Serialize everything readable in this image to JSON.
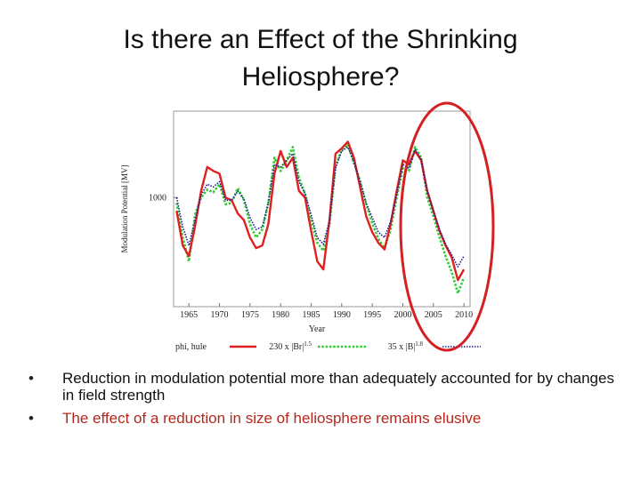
{
  "slide": {
    "title_line1": "Is there an Effect of the Shrinking",
    "title_line2": "Heliosphere?",
    "bullets": [
      "Reduction in modulation potential more than adequately accounted for by changes in field strength",
      "The effect of a reduction in size of heliosphere remains elusive"
    ]
  },
  "colors": {
    "phi": "#e02020",
    "fit1": "#33cc33",
    "fit2": "#1a1a99",
    "highlight": "#d42020",
    "bullet_accent": "#b5271c"
  },
  "chart_data": {
    "type": "line",
    "title": "",
    "xlabel": "Year",
    "ylabel": "Modulation Potential [MV]",
    "xlim": [
      1962.5,
      2011
    ],
    "ylim": [
      180,
      1650
    ],
    "x_ticks": [
      "1965",
      "1970",
      "1975",
      "1980",
      "1985",
      "1990",
      "1995",
      "2000",
      "2005",
      "2010"
    ],
    "y_ticks": [
      "1000"
    ],
    "x": [
      1963,
      1964,
      1965,
      1966,
      1967,
      1968,
      1969,
      1970,
      1971,
      1972,
      1973,
      1974,
      1975,
      1976,
      1977,
      1978,
      1979,
      1980,
      1981,
      1982,
      1983,
      1984,
      1985,
      1986,
      1987,
      1988,
      1989,
      1990,
      1991,
      1992,
      1993,
      1994,
      1995,
      1996,
      1997,
      1998,
      1999,
      2000,
      2001,
      2002,
      2003,
      2004,
      2005,
      2006,
      2007,
      2008,
      2009,
      2010
    ],
    "series": [
      {
        "name": "phi, hule",
        "legend_label": "phi, hule",
        "color": "#e02020",
        "style": "solid",
        "values": [
          900,
          640,
          560,
          780,
          1050,
          1230,
          1200,
          1180,
          1000,
          980,
          880,
          830,
          700,
          620,
          640,
          800,
          1180,
          1350,
          1230,
          1300,
          1050,
          1000,
          750,
          520,
          460,
          830,
          1330,
          1370,
          1420,
          1300,
          1080,
          860,
          740,
          660,
          610,
          800,
          1050,
          1280,
          1250,
          1350,
          1280,
          1050,
          900,
          750,
          640,
          550,
          380,
          460
        ]
      },
      {
        "name": "230 x |Br|^1.5",
        "legend_label": "230 x |Br|",
        "legend_exponent": "1.5",
        "color": "#33cc33",
        "style": "dotted",
        "values": [
          960,
          700,
          520,
          870,
          1000,
          1060,
          1040,
          1100,
          950,
          960,
          1070,
          980,
          800,
          700,
          760,
          960,
          1300,
          1200,
          1280,
          1380,
          1150,
          1030,
          830,
          660,
          600,
          800,
          1240,
          1360,
          1400,
          1260,
          1130,
          950,
          810,
          690,
          620,
          760,
          1000,
          1220,
          1200,
          1380,
          1300,
          1000,
          860,
          700,
          560,
          440,
          280,
          400
        ]
      },
      {
        "name": "35 x |B|^1.8",
        "legend_label": "35 x |B|",
        "legend_exponent": "1.8",
        "color": "#1a1a99",
        "style": "dotted",
        "values": [
          1000,
          780,
          640,
          830,
          1020,
          1100,
          1080,
          1120,
          980,
          980,
          1050,
          990,
          850,
          760,
          780,
          960,
          1250,
          1230,
          1280,
          1330,
          1120,
          1030,
          870,
          700,
          650,
          830,
          1220,
          1350,
          1380,
          1270,
          1120,
          960,
          850,
          740,
          700,
          820,
          1020,
          1250,
          1220,
          1360,
          1290,
          1050,
          900,
          760,
          650,
          570,
          480,
          560
        ]
      }
    ],
    "annotations": [
      "red ellipse highlighting 2004-2010"
    ]
  }
}
